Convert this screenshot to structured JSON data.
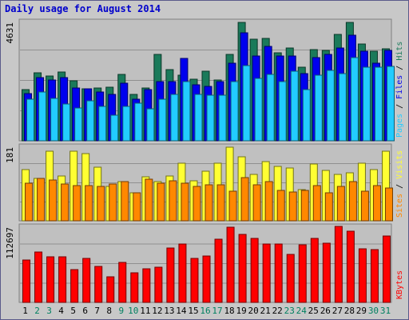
{
  "chart_data": {
    "type": "bar",
    "title": "Daily usage for August 2014",
    "days": [
      "1",
      "2",
      "3",
      "4",
      "5",
      "6",
      "7",
      "8",
      "9",
      "10",
      "11",
      "12",
      "13",
      "14",
      "15",
      "16",
      "17",
      "18",
      "19",
      "20",
      "21",
      "22",
      "23",
      "24",
      "25",
      "26",
      "27",
      "28",
      "29",
      "30",
      "31"
    ],
    "weekend_days": [
      "2",
      "3",
      "9",
      "10",
      "16",
      "17",
      "23",
      "24",
      "30",
      "31"
    ],
    "panels": [
      {
        "name": "pages-files-hits",
        "ymax_label": "4631",
        "ymax": 4631,
        "series": [
          {
            "name": "Hits",
            "color": "#1a7a5a",
            "values": [
              1990,
              2660,
              2520,
              2700,
              2340,
              2030,
              2050,
              2110,
              2590,
              1820,
              2050,
              3390,
              2770,
              2570,
              2410,
              2710,
              2380,
              3380,
              4631,
              3960,
              4000,
              3450,
              3620,
              2880,
              3570,
              3550,
              4150,
              4631,
              3800,
              3520,
              3590
            ]
          },
          {
            "name": "Files",
            "color": "#0000ee",
            "values": [
              1860,
              2460,
              2380,
              2460,
              2080,
              2030,
              1900,
              1820,
              2250,
              1630,
              1990,
              2330,
              2330,
              3220,
              2200,
              2140,
              2330,
              3020,
              4211,
              3320,
              3680,
              3330,
              3320,
              2630,
              3240,
              3380,
              3630,
              4140,
              3500,
              3020,
              3540
            ]
          },
          {
            "name": "Pages",
            "color": "#22ccff",
            "values": [
              1630,
              1900,
              1670,
              1430,
              1280,
              1560,
              1360,
              990,
              1340,
              1460,
              1250,
              1640,
              1800,
              2330,
              1800,
              1770,
              1790,
              2330,
              2940,
              2440,
              2590,
              2300,
              2730,
              2000,
              2560,
              2750,
              2620,
              3260,
              2890,
              2890,
              2920
            ]
          }
        ],
        "legend": [
          "Pages",
          "Files",
          "Hits"
        ],
        "legend_colors": [
          "#22ccff",
          "#0000ee",
          "#1a7a5a"
        ]
      },
      {
        "name": "sites-visits",
        "ymax_label": "181",
        "ymax": 181,
        "series": [
          {
            "name": "Visits",
            "color": "#ffff33",
            "values": [
              125,
              105,
              172,
              110,
              171,
              166,
              132,
              85,
              96,
              68,
              108,
              96,
              110,
              142,
              98,
              121,
              141,
              181,
              157,
              115,
              145,
              133,
              130,
              76,
              139,
              123,
              115,
              118,
              142,
              126,
              172
            ]
          },
          {
            "name": "Sites",
            "color": "#ff8800",
            "values": [
              92,
              104,
              101,
              91,
              87,
              87,
              85,
              91,
              96,
              68,
              103,
              93,
              99,
              92,
              84,
              89,
              88,
              73,
              106,
              88,
              97,
              74,
              70,
              75,
              87,
              68,
              85,
              96,
              73,
              87,
              80
            ]
          }
        ],
        "legend": [
          "Sites",
          "Visits"
        ],
        "legend_colors": [
          "#ff8800",
          "#ffff33"
        ]
      },
      {
        "name": "kbytes",
        "ymax_label": "112697",
        "ymax": 112697,
        "series": [
          {
            "name": "KBytes",
            "color": "#ff0000",
            "values": [
              63700,
              75100,
              68400,
              68400,
              48700,
              66100,
              54500,
              38800,
              59800,
              44000,
              50100,
              53300,
              81400,
              87300,
              65600,
              69400,
              94300,
              112697,
              101500,
              95900,
              87300,
              87300,
              71800,
              86400,
              95900,
              89200,
              113800,
              106800,
              80400,
              78900,
              99100
            ]
          }
        ],
        "legend": [
          "KBytes"
        ],
        "legend_colors": [
          "#ff0000"
        ]
      }
    ]
  }
}
